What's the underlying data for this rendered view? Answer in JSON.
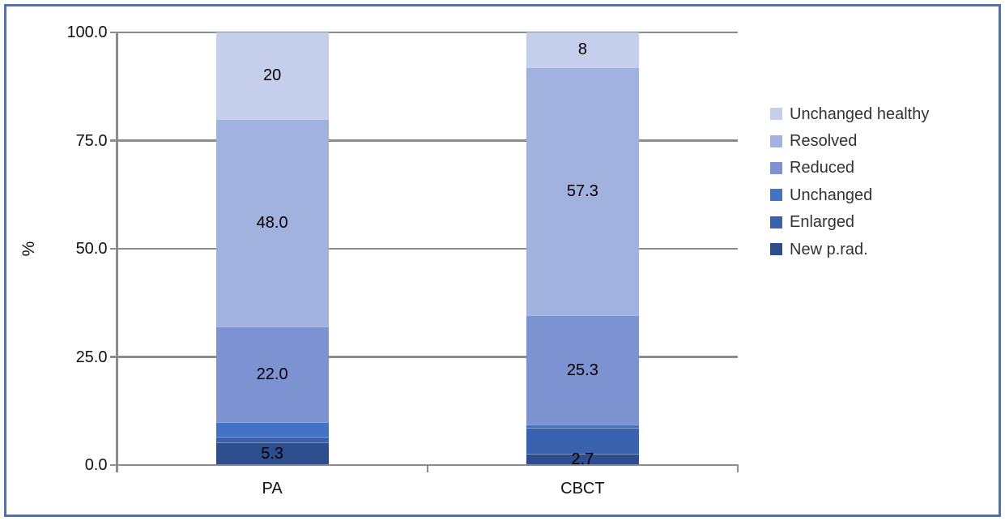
{
  "chart_data": {
    "type": "bar",
    "stacked": true,
    "orientation": "vertical",
    "title": "",
    "xlabel": "",
    "ylabel": "%",
    "ylim": [
      0,
      100
    ],
    "grid": true,
    "legend_position": "right",
    "categories": [
      "PA",
      "CBCT"
    ],
    "yticks": [
      {
        "value": 0,
        "label": "0.0"
      },
      {
        "value": 25,
        "label": "25.0"
      },
      {
        "value": 50,
        "label": "50.0"
      },
      {
        "value": 75,
        "label": "75.0"
      },
      {
        "value": 100,
        "label": "100.0"
      }
    ],
    "series": [
      {
        "name": "Unchanged healthy",
        "color": "#C5CEEA",
        "values": [
          20.0,
          8.0
        ],
        "labels": [
          "20",
          "8"
        ]
      },
      {
        "name": "Resolved",
        "color": "#A2B2DE",
        "values": [
          48.0,
          57.3
        ],
        "labels": [
          "48.0",
          "57.3"
        ]
      },
      {
        "name": "Reduced",
        "color": "#7D92D0",
        "values": [
          22.0,
          25.3
        ],
        "labels": [
          "22.0",
          "25.3"
        ]
      },
      {
        "name": "Unchanged",
        "color": "#4472C4",
        "values": [
          3.4,
          0.7
        ],
        "labels": [
          null,
          null
        ]
      },
      {
        "name": "Enlarged",
        "color": "#3A62AE",
        "values": [
          1.3,
          6.0
        ],
        "labels": [
          null,
          null
        ]
      },
      {
        "name": "New p.rad.",
        "color": "#2E4D8F",
        "values": [
          5.3,
          2.7
        ],
        "labels": [
          "5.3",
          "2.7"
        ]
      }
    ],
    "notes": "series listed top-of-stack first; unlabeled thin segment values estimated from pixel heights"
  },
  "colors": {
    "frame_border": "#4472C4",
    "grid": "#8C8C8C",
    "axis": "#8C8C8C",
    "background": "#FFFFFF",
    "tick_label": "#111111",
    "data_label": "#000000",
    "legend_text": "#333333"
  }
}
